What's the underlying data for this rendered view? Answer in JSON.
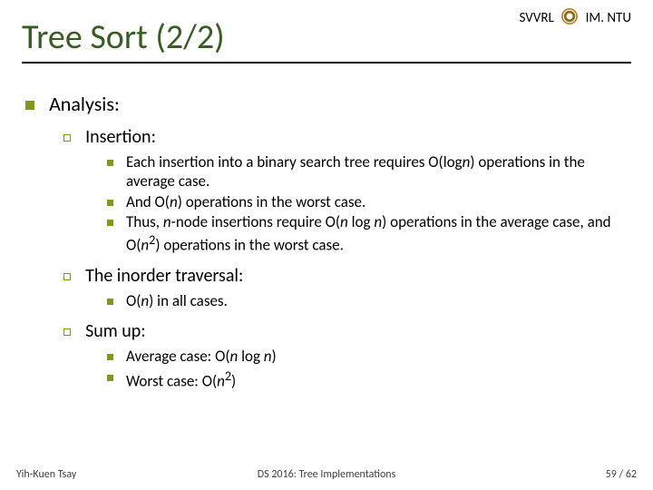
{
  "header": {
    "left_text": "SVVRL",
    "right_text": "IM. NTU",
    "logo_colors": {
      "ring": "#b38b2a",
      "inner": "#ffffff",
      "band": "#8a6a1e"
    }
  },
  "title": "Tree Sort (2/2)",
  "title_color": "#385d24",
  "rule_color": "#000000",
  "bullet_color": "#7f991f",
  "body": {
    "l1": "Analysis:",
    "sections": [
      {
        "l2": "Insertion:",
        "items_html": [
          "Each insertion into a binary search tree requires O(log<span class=\"italic\">n</span>) operations in the average case.",
          "And O(<span class=\"italic\">n</span>) operations in the worst case.",
          "Thus, <span class=\"italic\">n</span>-node insertions require O(<span class=\"italic\">n</span> log <span class=\"italic\">n</span>) operations in the average case, and O(<span class=\"italic\">n</span><sup>2</sup>) operations in the worst case."
        ]
      },
      {
        "l2": "The inorder traversal:",
        "items_html": [
          "O(<span class=\"italic\">n</span>) in all cases."
        ]
      },
      {
        "l2": "Sum up:",
        "items_html": [
          "Average case: O(<span class=\"italic\">n</span> log <span class=\"italic\">n</span>)",
          "Worst case: O(<span class=\"italic\">n</span><sup>2</sup>)"
        ]
      }
    ]
  },
  "footer": {
    "left": "Yih-Kuen Tsay",
    "center": "DS 2016: Tree Implementations",
    "right": "59 / 62"
  }
}
